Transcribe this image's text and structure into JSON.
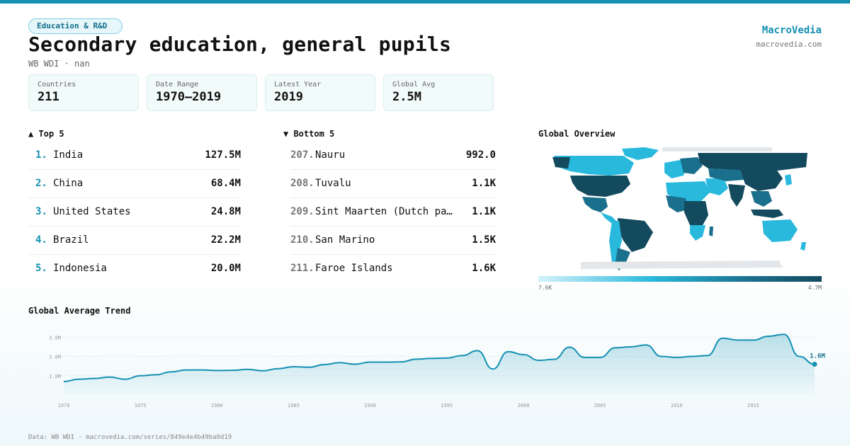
{
  "header": {
    "tag": "Education & R&D",
    "title": "Secondary education, general pupils",
    "subtitle": "WB WDI · nan",
    "brand": "MacroVedia",
    "brand_url": "macrovedia.com"
  },
  "stats": [
    {
      "label": "Countries",
      "value": "211"
    },
    {
      "label": "Date Range",
      "value": "1970–2019"
    },
    {
      "label": "Latest Year",
      "value": "2019"
    },
    {
      "label": "Global Avg",
      "value": "2.5M"
    }
  ],
  "top5": {
    "heading": "▲ Top 5",
    "items": [
      {
        "rank": "1.",
        "name": "India",
        "value": "127.5M"
      },
      {
        "rank": "2.",
        "name": "China",
        "value": "68.4M"
      },
      {
        "rank": "3.",
        "name": "United States",
        "value": "24.8M"
      },
      {
        "rank": "4.",
        "name": "Brazil",
        "value": "22.2M"
      },
      {
        "rank": "5.",
        "name": "Indonesia",
        "value": "20.0M"
      }
    ]
  },
  "bottom5": {
    "heading": "▼ Bottom 5",
    "items": [
      {
        "rank": "207.",
        "name": "Nauru",
        "value": "992.0"
      },
      {
        "rank": "208.",
        "name": "Tuvalu",
        "value": "1.1K"
      },
      {
        "rank": "209.",
        "name": "Sint Maarten (Dutch pa…",
        "value": "1.1K"
      },
      {
        "rank": "210.",
        "name": "San Marino",
        "value": "1.5K"
      },
      {
        "rank": "211.",
        "name": "Faroe Islands",
        "value": "1.6K"
      }
    ]
  },
  "map": {
    "heading": "Global Overview",
    "legend_min": "7.6K",
    "legend_max": "4.7M",
    "colors": {
      "low": "#d3f2fb",
      "mid": "#29b9dc",
      "high": "#134a5e",
      "nodata": "#e4e7ea"
    }
  },
  "chart_data": {
    "type": "area",
    "title": "Global Average Trend",
    "xlabel": "",
    "ylabel": "",
    "x": [
      1970,
      1971,
      1972,
      1973,
      1974,
      1975,
      1976,
      1977,
      1978,
      1979,
      1980,
      1981,
      1982,
      1983,
      1984,
      1985,
      1986,
      1987,
      1988,
      1989,
      1990,
      1991,
      1992,
      1993,
      1994,
      1995,
      1996,
      1997,
      1998,
      1999,
      2000,
      2001,
      2002,
      2003,
      2004,
      2005,
      2006,
      2007,
      2008,
      2009,
      2010,
      2011,
      2012,
      2013,
      2014,
      2015,
      2016,
      2017,
      2018,
      2019
    ],
    "values": [
      0.7,
      0.82,
      0.86,
      0.93,
      0.82,
      1.0,
      1.05,
      1.2,
      1.3,
      1.3,
      1.27,
      1.28,
      1.33,
      1.26,
      1.37,
      1.47,
      1.44,
      1.58,
      1.68,
      1.6,
      1.71,
      1.71,
      1.72,
      1.86,
      1.9,
      1.92,
      2.05,
      2.3,
      1.35,
      2.25,
      2.1,
      1.8,
      1.85,
      2.48,
      1.95,
      1.95,
      2.45,
      2.5,
      2.6,
      2.0,
      1.95,
      2.0,
      2.05,
      2.95,
      2.85,
      2.85,
      3.05,
      3.15,
      2.0,
      1.6
    ],
    "y_ticks": [
      "1.0M",
      "2.0M",
      "3.0M"
    ],
    "y_tick_values": [
      1.0,
      2.0,
      3.0
    ],
    "x_ticks": [
      "1970",
      "1975",
      "1980",
      "1985",
      "1990",
      "1995",
      "2000",
      "2005",
      "2010",
      "2015"
    ],
    "ylim": [
      0,
      3.6
    ],
    "last_label": "1.6M",
    "grid": true,
    "color": "#1591b3"
  },
  "footer": "Data: WB WDI · macrovedia.com/series/849e4e4b49ba0d19"
}
